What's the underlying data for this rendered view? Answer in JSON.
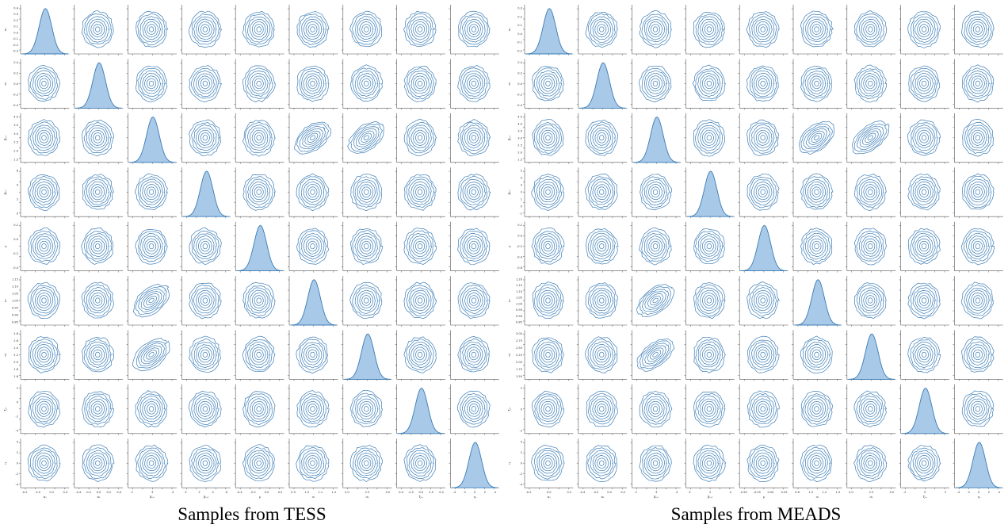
{
  "captions": {
    "left": "Samples from TESS",
    "right": "Samples from MEADS"
  },
  "colors": {
    "kde_line": "#3b7cb5",
    "kde_fill": "#a9c9e8",
    "axis": "#555555",
    "tick_text": "#333333"
  },
  "chart_data": [
    {
      "type": "pairplot-kde",
      "caption": "Samples from TESS",
      "variables": [
        "α₁",
        "α₂",
        "β₀,₁",
        "β₀,₂",
        "ρ",
        "σ₁",
        "σ₂",
        "ξ₁ₐ",
        "ηᵢ"
      ],
      "diag_ticks": [
        [
          "-0.2",
          "0.0",
          "0.2",
          "0.4"
        ],
        [
          "-0.4",
          "-0.2",
          "0.0",
          "0.2",
          "0.4"
        ],
        [
          "2",
          "3",
          "4"
        ],
        [
          "0",
          "2",
          "4",
          "6"
        ],
        [
          "-0.4",
          "-0.2",
          "0.0",
          "0.2"
        ],
        [
          "0.9",
          "1.0",
          "1.1",
          "1.2"
        ],
        [
          "2.0",
          "2.5",
          "3.0"
        ],
        [
          "-5.0",
          "-2.5",
          "0.0",
          "2.5",
          "5.0"
        ],
        [
          "-4",
          "-2",
          "0",
          "2",
          "4"
        ]
      ],
      "y_ticks": [
        [
          "0.4",
          "0.3",
          "0.2",
          "0.1",
          "0.0",
          "-0.1",
          "-0.2",
          "-0.3"
        ],
        [
          "0.4",
          "0.2",
          "0.0",
          "-0.2",
          "-0.4"
        ],
        [
          "4.0",
          "3.5",
          "3.0",
          "2.5",
          "2.0",
          "1.5"
        ],
        [
          "6",
          "4",
          "2",
          "0"
        ],
        [
          "0.2",
          "0.0",
          "-0.2",
          "-0.4"
        ],
        [
          "1.15",
          "1.10",
          "1.05",
          "1.00",
          "0.95",
          "0.90",
          "0.85"
        ],
        [
          "2.8",
          "2.6",
          "2.4",
          "2.2",
          "2.0",
          "1.8",
          "1.6"
        ],
        [
          "2",
          "0",
          "-2",
          "-4"
        ],
        [
          "4",
          "2",
          "0",
          "-2",
          "-4"
        ]
      ],
      "correlations": {
        "2-5": 0.7,
        "2-6": 0.7
      }
    },
    {
      "type": "pairplot-kde",
      "caption": "Samples from MEADS",
      "variables": [
        "α₁",
        "α₂",
        "β₀,₁",
        "β₀,₂",
        "ρ",
        "σ₁",
        "σ₂",
        "ξ₁ₐ",
        "ηᵢ"
      ],
      "diag_ticks": [
        [
          "-0.2",
          "0.0",
          "0.2"
        ],
        [
          "-0.4",
          "-0.2",
          "0.0",
          "0.2"
        ],
        [
          "2",
          "3",
          "4"
        ],
        [
          "0",
          "2",
          "4"
        ],
        [
          "-0.50",
          "-0.25",
          "0.00",
          "0.25"
        ],
        [
          "0.8",
          "1.0",
          "1.2",
          "1.5"
        ],
        [
          "2.0",
          "2.5",
          "3.0"
        ],
        [
          "-2",
          "0",
          "2"
        ],
        [
          "-4",
          "-2",
          "0",
          "2",
          "4"
        ]
      ],
      "y_ticks": [
        [
          "0.3",
          "0.2",
          "0.1",
          "0.0",
          "-0.1",
          "-0.2"
        ],
        [
          "0.4",
          "0.2",
          "0.0",
          "-0.2",
          "-0.4"
        ],
        [
          "4.5",
          "4.0",
          "3.5",
          "3.0",
          "2.5",
          "2.0",
          "1.5"
        ],
        [
          "5",
          "4",
          "3",
          "2",
          "1",
          "0",
          "-1"
        ],
        [
          "0.2",
          "0.0",
          "-0.2",
          "-0.4",
          "-0.6"
        ],
        [
          "1.20",
          "1.15",
          "1.10",
          "1.05",
          "1.00",
          "0.95",
          "0.90",
          "0.85"
        ],
        [
          "3.00",
          "2.75",
          "2.50",
          "2.25",
          "2.00",
          "1.75",
          "1.50"
        ],
        [
          "2",
          "0",
          "-2"
        ],
        [
          "4",
          "2",
          "0",
          "-2",
          "-4"
        ]
      ],
      "correlations": {
        "2-5": 0.7,
        "2-6": 0.8
      }
    }
  ]
}
